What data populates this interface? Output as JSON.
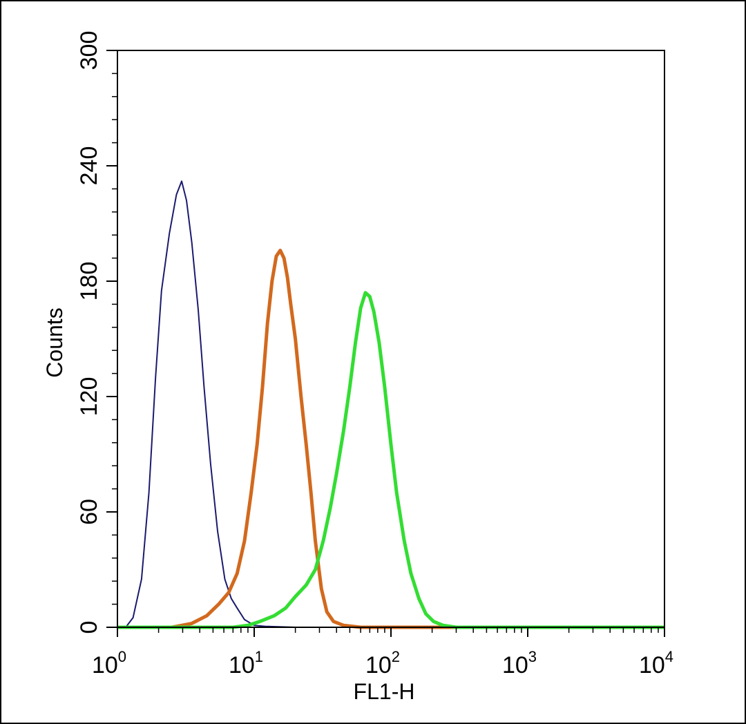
{
  "chart_data": {
    "type": "line",
    "xlabel": "FL1-H",
    "ylabel": "Counts",
    "x_scale": "log",
    "xlim": [
      1,
      10000
    ],
    "ylim": [
      0,
      300
    ],
    "x_ticks": [
      {
        "value": 1,
        "base": "10",
        "exp": "0"
      },
      {
        "value": 10,
        "base": "10",
        "exp": "1"
      },
      {
        "value": 100,
        "base": "10",
        "exp": "2"
      },
      {
        "value": 1000,
        "base": "10",
        "exp": "3"
      },
      {
        "value": 10000,
        "base": "10",
        "exp": "4"
      }
    ],
    "y_ticks": [
      0,
      60,
      120,
      180,
      240,
      300
    ],
    "grid": false,
    "legend": "none",
    "series": [
      {
        "color": "#1a1a6e",
        "stroke": "thin",
        "points": [
          [
            1.15,
            0
          ],
          [
            1.3,
            5
          ],
          [
            1.5,
            25
          ],
          [
            1.7,
            70
          ],
          [
            1.9,
            130
          ],
          [
            2.1,
            175
          ],
          [
            2.4,
            205
          ],
          [
            2.7,
            225
          ],
          [
            2.95,
            232
          ],
          [
            3.2,
            222
          ],
          [
            3.5,
            200
          ],
          [
            3.9,
            165
          ],
          [
            4.3,
            125
          ],
          [
            4.8,
            85
          ],
          [
            5.4,
            50
          ],
          [
            6.1,
            25
          ],
          [
            6.8,
            15
          ],
          [
            7.5,
            10
          ],
          [
            8.5,
            4
          ],
          [
            10,
            1
          ],
          [
            12,
            0.5
          ],
          [
            20,
            0
          ],
          [
            50,
            0
          ],
          [
            10000,
            0
          ]
        ]
      },
      {
        "color": "#d2691e",
        "stroke": "thick",
        "points": [
          [
            1,
            0
          ],
          [
            2.5,
            0
          ],
          [
            3.5,
            2
          ],
          [
            4.5,
            6
          ],
          [
            5.5,
            12
          ],
          [
            6.5,
            18
          ],
          [
            7.5,
            28
          ],
          [
            8.5,
            45
          ],
          [
            9.5,
            70
          ],
          [
            10.5,
            95
          ],
          [
            11.5,
            125
          ],
          [
            12.5,
            158
          ],
          [
            13.5,
            180
          ],
          [
            14.5,
            193
          ],
          [
            15.5,
            196
          ],
          [
            16.5,
            192
          ],
          [
            17.5,
            182
          ],
          [
            18.5,
            168
          ],
          [
            20,
            150
          ],
          [
            22,
            120
          ],
          [
            24,
            95
          ],
          [
            26,
            70
          ],
          [
            28,
            45
          ],
          [
            31,
            20
          ],
          [
            34,
            8
          ],
          [
            38,
            3
          ],
          [
            45,
            1
          ],
          [
            60,
            0
          ],
          [
            10000,
            0
          ]
        ]
      },
      {
        "color": "#33dd33",
        "stroke": "thick",
        "points": [
          [
            1,
            0
          ],
          [
            7,
            0
          ],
          [
            9,
            1
          ],
          [
            11,
            3
          ],
          [
            14,
            6
          ],
          [
            17,
            10
          ],
          [
            20,
            16
          ],
          [
            24,
            22
          ],
          [
            28,
            30
          ],
          [
            32,
            45
          ],
          [
            36,
            62
          ],
          [
            40,
            80
          ],
          [
            45,
            102
          ],
          [
            50,
            125
          ],
          [
            55,
            148
          ],
          [
            60,
            166
          ],
          [
            65,
            174
          ],
          [
            70,
            172
          ],
          [
            75,
            164
          ],
          [
            82,
            148
          ],
          [
            90,
            125
          ],
          [
            100,
            95
          ],
          [
            110,
            70
          ],
          [
            125,
            45
          ],
          [
            140,
            28
          ],
          [
            160,
            15
          ],
          [
            180,
            7
          ],
          [
            205,
            3
          ],
          [
            240,
            1
          ],
          [
            300,
            0
          ],
          [
            10000,
            0
          ]
        ]
      }
    ]
  }
}
